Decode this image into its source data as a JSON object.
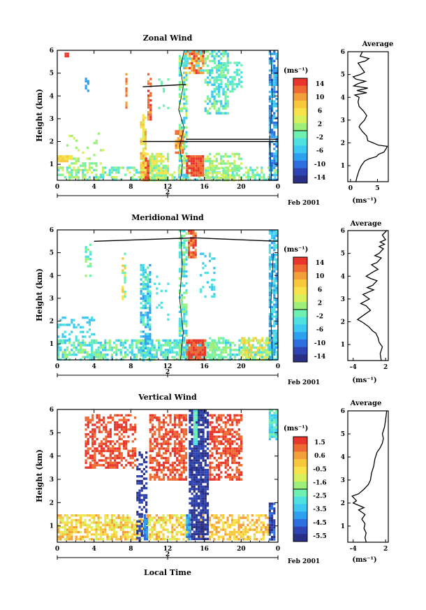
{
  "common": {
    "x_label": "Local Time",
    "date_label": "Feb 2001",
    "date_tick": "2",
    "units": "(ms⁻¹)",
    "y_label": "Height (km)",
    "profile_title": "Average",
    "x_ticks": [
      "0",
      "4",
      "8",
      "12",
      "16",
      "20",
      "0"
    ],
    "y_ticks": [
      "1",
      "2",
      "3",
      "4",
      "5",
      "6"
    ]
  },
  "colors": {
    "palette": [
      "#2a2f86",
      "#2f44b3",
      "#2e6fe0",
      "#2da0ef",
      "#3cc8f0",
      "#4fe0e0",
      "#6ef0b0",
      "#9cf07a",
      "#d6f05c",
      "#f7e24a",
      "#f8c83c",
      "#f4a03a",
      "#ee6a32",
      "#e8362c"
    ]
  },
  "chart_data": [
    {
      "type": "heatmap",
      "title": "Zonal Wind",
      "xlim": [
        0,
        24
      ],
      "ylim": [
        0.3,
        6
      ],
      "colorbar_ticks": [
        "14",
        "10",
        "6",
        "2",
        "-2",
        "-6",
        "-10",
        "-14"
      ],
      "profile": {
        "xlabel": "(ms⁻¹)",
        "xticks": [
          "0",
          "5"
        ],
        "xlim": [
          -0.5,
          7
        ],
        "points": [
          [
            1,
            0.3
          ],
          [
            1.2,
            0.5
          ],
          [
            1.6,
            0.8
          ],
          [
            2.0,
            1.0
          ],
          [
            2.6,
            1.2
          ],
          [
            3.4,
            1.3
          ],
          [
            4.8,
            1.4
          ],
          [
            5.2,
            1.5
          ],
          [
            6.2,
            1.6
          ],
          [
            6.6,
            1.75
          ],
          [
            6.8,
            1.85
          ],
          [
            5.2,
            1.9
          ],
          [
            4.2,
            2.0
          ],
          [
            3.2,
            2.1
          ],
          [
            3.0,
            2.3
          ],
          [
            2.2,
            2.5
          ],
          [
            1.6,
            2.7
          ],
          [
            1.8,
            2.8
          ],
          [
            2.6,
            3.0
          ],
          [
            3.0,
            3.2
          ],
          [
            2.4,
            3.4
          ],
          [
            1.6,
            3.6
          ],
          [
            1.4,
            3.8
          ],
          [
            1.6,
            4.0
          ],
          [
            0.8,
            4.1
          ],
          [
            3.0,
            4.2
          ],
          [
            1.2,
            4.3
          ],
          [
            3.2,
            4.4
          ],
          [
            0.6,
            4.5
          ],
          [
            1.4,
            4.6
          ],
          [
            2.8,
            4.7
          ],
          [
            1.0,
            4.8
          ],
          [
            0.5,
            4.9
          ],
          [
            1.8,
            5.0
          ],
          [
            2.6,
            5.1
          ],
          [
            2.0,
            5.3
          ],
          [
            1.4,
            5.5
          ],
          [
            2.8,
            5.6
          ],
          [
            3.4,
            5.7
          ],
          [
            1.8,
            5.8
          ],
          [
            2.2,
            6.0
          ]
        ]
      }
    },
    {
      "type": "heatmap",
      "title": "Meridional Wind",
      "xlim": [
        0,
        24
      ],
      "ylim": [
        0.3,
        6
      ],
      "colorbar_ticks": [
        "14",
        "10",
        "6",
        "2",
        "-2",
        "-6",
        "-10",
        "-14"
      ],
      "profile": {
        "xlabel": "(ms⁻¹)",
        "xticks": [
          "-4",
          "2"
        ],
        "xlim": [
          -5,
          2.5
        ],
        "points": [
          [
            1.2,
            0.3
          ],
          [
            1.0,
            0.6
          ],
          [
            1.4,
            0.9
          ],
          [
            0.8,
            1.1
          ],
          [
            0.6,
            1.3
          ],
          [
            0.2,
            1.5
          ],
          [
            -0.4,
            1.6
          ],
          [
            -1.2,
            1.8
          ],
          [
            -2.4,
            2.0
          ],
          [
            -3.2,
            2.1
          ],
          [
            -2.0,
            2.3
          ],
          [
            -0.8,
            2.5
          ],
          [
            -1.6,
            2.7
          ],
          [
            -2.6,
            2.8
          ],
          [
            -1.0,
            3.0
          ],
          [
            -2.2,
            3.2
          ],
          [
            -0.2,
            3.4
          ],
          [
            -1.4,
            3.5
          ],
          [
            -0.4,
            3.6
          ],
          [
            0.4,
            3.8
          ],
          [
            -0.8,
            3.9
          ],
          [
            -1.6,
            4.0
          ],
          [
            -0.2,
            4.2
          ],
          [
            0.6,
            4.3
          ],
          [
            -0.6,
            4.5
          ],
          [
            0.4,
            4.6
          ],
          [
            1.2,
            4.8
          ],
          [
            0.0,
            4.9
          ],
          [
            0.8,
            5.0
          ],
          [
            1.6,
            5.2
          ],
          [
            0.8,
            5.3
          ],
          [
            1.8,
            5.4
          ],
          [
            1.0,
            5.5
          ],
          [
            2.0,
            5.6
          ],
          [
            1.4,
            5.8
          ],
          [
            2.2,
            6.0
          ]
        ]
      }
    },
    {
      "type": "heatmap",
      "title": "Vertical Wind",
      "xlim": [
        0,
        24
      ],
      "ylim": [
        0.3,
        6
      ],
      "colorbar_ticks": [
        "1.5",
        "0.6",
        "-0.5",
        "-1.6",
        "-2.5",
        "-3.5",
        "-4.5",
        "-5.5"
      ],
      "profile": {
        "xlabel": "(ms⁻¹)",
        "xticks": [
          "-4",
          "2"
        ],
        "xlim": [
          -5,
          2.5
        ],
        "points": [
          [
            -1.6,
            0.3
          ],
          [
            -1.8,
            0.5
          ],
          [
            -1.6,
            0.7
          ],
          [
            -2.0,
            0.9
          ],
          [
            -1.8,
            1.1
          ],
          [
            -2.4,
            1.3
          ],
          [
            -1.8,
            1.5
          ],
          [
            -3.0,
            1.7
          ],
          [
            -2.0,
            1.8
          ],
          [
            -4.0,
            2.0
          ],
          [
            -3.4,
            2.1
          ],
          [
            -4.2,
            2.3
          ],
          [
            -3.0,
            2.4
          ],
          [
            -2.0,
            2.6
          ],
          [
            -1.2,
            2.8
          ],
          [
            -0.8,
            3.0
          ],
          [
            -0.6,
            3.3
          ],
          [
            -0.2,
            3.6
          ],
          [
            0.0,
            3.9
          ],
          [
            0.4,
            4.2
          ],
          [
            1.0,
            4.4
          ],
          [
            1.4,
            4.6
          ],
          [
            1.6,
            4.8
          ],
          [
            1.4,
            5.0
          ],
          [
            1.8,
            5.3
          ],
          [
            2.0,
            5.6
          ],
          [
            2.2,
            6.0
          ]
        ]
      }
    }
  ]
}
